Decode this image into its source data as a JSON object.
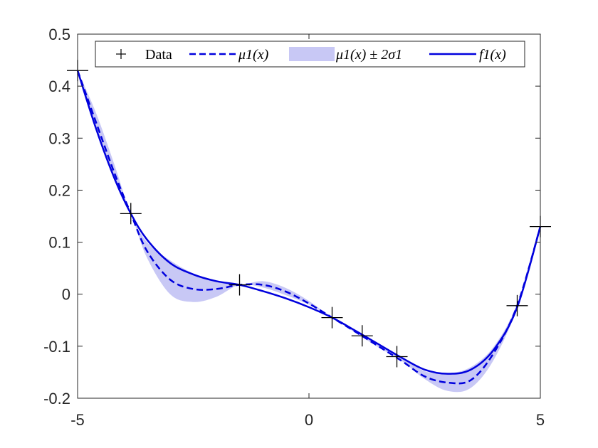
{
  "chart_data": {
    "type": "line",
    "title": "",
    "xlabel": "",
    "ylabel": "",
    "xlim": [
      -5,
      5
    ],
    "ylim": [
      -0.2,
      0.5
    ],
    "x_ticks": [
      "-5",
      "0",
      "5"
    ],
    "y_ticks": [
      "-0.2",
      "-0.1",
      "0",
      "0.1",
      "0.2",
      "0.3",
      "0.4",
      "0.5"
    ],
    "legend_position": "top",
    "legend": [
      "Data",
      "μ1(x)",
      "μ1(x) ± 2σ1",
      "f1(x)"
    ],
    "colors": {
      "line": "#0000dd",
      "band": "#c8c8f5",
      "marker": "#000000",
      "axis": "#262626"
    },
    "series": [
      {
        "name": "Data",
        "kind": "scatter",
        "marker": "plus",
        "x": [
          -5.0,
          -3.85,
          -1.5,
          0.5,
          1.15,
          1.9,
          4.5,
          5.0
        ],
        "y": [
          0.43,
          0.155,
          0.018,
          -0.045,
          -0.08,
          -0.12,
          -0.022,
          0.13
        ]
      },
      {
        "name": "μ1(x)",
        "kind": "line",
        "style": "dashed",
        "x": [
          -5.0,
          -4.6,
          -4.2,
          -3.85,
          -3.5,
          -3.0,
          -2.5,
          -2.0,
          -1.5,
          -1.0,
          -0.5,
          0.0,
          0.5,
          1.0,
          1.5,
          2.0,
          2.5,
          3.0,
          3.5,
          4.0,
          4.5,
          5.0
        ],
        "y": [
          0.43,
          0.33,
          0.232,
          0.155,
          0.083,
          0.028,
          0.01,
          0.01,
          0.018,
          0.018,
          0.005,
          -0.018,
          -0.045,
          -0.072,
          -0.1,
          -0.128,
          -0.158,
          -0.17,
          -0.165,
          -0.112,
          -0.022,
          0.13
        ]
      },
      {
        "name": "μ1(x) ± 2σ1",
        "kind": "band",
        "x": [
          -5.0,
          -4.6,
          -4.2,
          -3.85,
          -3.5,
          -3.0,
          -2.5,
          -2.0,
          -1.5,
          -1.0,
          -0.5,
          0.0,
          0.5,
          1.0,
          1.5,
          2.0,
          2.5,
          3.0,
          3.5,
          4.0,
          4.5,
          5.0
        ],
        "lower": [
          0.43,
          0.318,
          0.218,
          0.155,
          0.07,
          0.0,
          -0.015,
          -0.005,
          0.018,
          0.013,
          -0.002,
          -0.02,
          -0.045,
          -0.074,
          -0.102,
          -0.128,
          -0.163,
          -0.186,
          -0.18,
          -0.125,
          -0.025,
          0.13
        ],
        "upper": [
          0.43,
          0.348,
          0.248,
          0.155,
          0.1,
          0.065,
          0.04,
          0.025,
          0.018,
          0.025,
          0.012,
          -0.013,
          -0.045,
          -0.07,
          -0.098,
          -0.12,
          -0.148,
          -0.152,
          -0.14,
          -0.1,
          -0.018,
          0.13
        ]
      },
      {
        "name": "f1(x)",
        "kind": "line",
        "style": "solid",
        "x": [
          -5.0,
          -4.6,
          -4.2,
          -3.85,
          -3.5,
          -3.0,
          -2.5,
          -2.0,
          -1.5,
          -1.0,
          -0.5,
          0.0,
          0.5,
          1.0,
          1.5,
          2.0,
          2.5,
          3.0,
          3.5,
          4.0,
          4.5,
          5.0
        ],
        "y": [
          0.43,
          0.318,
          0.222,
          0.155,
          0.105,
          0.06,
          0.038,
          0.025,
          0.018,
          0.006,
          -0.008,
          -0.025,
          -0.045,
          -0.07,
          -0.096,
          -0.122,
          -0.145,
          -0.153,
          -0.145,
          -0.106,
          -0.025,
          0.13
        ]
      }
    ]
  }
}
